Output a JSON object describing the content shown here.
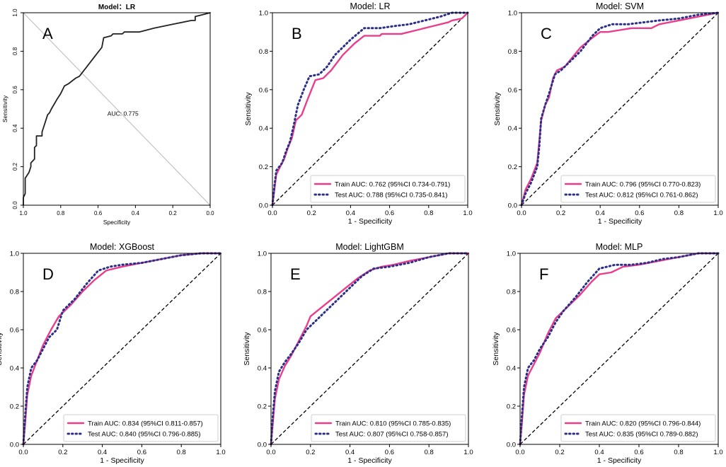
{
  "figure": "ROC curves for six models",
  "colors": {
    "train": "#e83e8c",
    "test": "#2b2f8a",
    "axis": "#000000",
    "diag": "#000000",
    "panelA": "#222222",
    "refline": "#bbbbbb"
  },
  "chart_data": [
    {
      "type": "line",
      "letter": "A",
      "title": "Model：LR",
      "xlabel": "Specificity",
      "ylabel": "Sensitivity",
      "xlim": [
        1.0,
        0.0
      ],
      "ylim": [
        0.0,
        1.0
      ],
      "x_ticks": [
        "1.0",
        "0.8",
        "0.6",
        "0.4",
        "0.2",
        "0.0"
      ],
      "y_ticks": [
        "0.0",
        "0.2",
        "0.4",
        "0.6",
        "0.8",
        "1.0"
      ],
      "annotation": "AUC: 0.775",
      "series": [
        {
          "name": "ROC",
          "x": [
            1.0,
            1.0,
            0.99,
            0.99,
            0.97,
            0.96,
            0.96,
            0.94,
            0.94,
            0.93,
            0.93,
            0.9,
            0.9,
            0.88,
            0.87,
            0.86,
            0.85,
            0.82,
            0.8,
            0.78,
            0.76,
            0.72,
            0.7,
            0.66,
            0.62,
            0.58,
            0.57,
            0.53,
            0.52,
            0.47,
            0.46,
            0.38,
            0.3,
            0.2,
            0.1,
            0.08,
            0.08,
            0.04,
            0.0
          ],
          "y": [
            0.0,
            0.04,
            0.06,
            0.14,
            0.17,
            0.2,
            0.22,
            0.24,
            0.3,
            0.31,
            0.36,
            0.36,
            0.38,
            0.44,
            0.47,
            0.48,
            0.5,
            0.55,
            0.58,
            0.62,
            0.63,
            0.66,
            0.67,
            0.72,
            0.77,
            0.82,
            0.87,
            0.88,
            0.89,
            0.89,
            0.9,
            0.9,
            0.92,
            0.94,
            0.96,
            0.96,
            0.98,
            0.99,
            1.0
          ]
        }
      ]
    },
    {
      "type": "line",
      "letter": "B",
      "title": "Model: LR",
      "xlabel": "1 - Specificity",
      "ylabel": "Sensitivity",
      "xlim": [
        0.0,
        1.0
      ],
      "ylim": [
        0.0,
        1.0
      ],
      "x_ticks": [
        "0.0",
        "0.2",
        "0.4",
        "0.6",
        "0.8",
        "1.0"
      ],
      "y_ticks": [
        "0.0",
        "0.2",
        "0.4",
        "0.6",
        "0.8",
        "1.0"
      ],
      "series": [
        {
          "name": "Train",
          "label": "Train AUC: 0.762 (95%CI 0.734-0.791)",
          "x": [
            0,
            0.01,
            0.02,
            0.04,
            0.06,
            0.08,
            0.1,
            0.12,
            0.15,
            0.18,
            0.22,
            0.26,
            0.3,
            0.36,
            0.42,
            0.47,
            0.55,
            0.56,
            0.66,
            0.74,
            0.82,
            0.9,
            0.92,
            0.97,
            1.0
          ],
          "y": [
            0,
            0.08,
            0.16,
            0.2,
            0.24,
            0.3,
            0.35,
            0.44,
            0.47,
            0.55,
            0.65,
            0.66,
            0.7,
            0.78,
            0.84,
            0.88,
            0.88,
            0.89,
            0.89,
            0.91,
            0.93,
            0.95,
            0.96,
            0.97,
            1.0
          ]
        },
        {
          "name": "Test",
          "label": "Test AUC: 0.788 (95%CI 0.735-0.841)",
          "x": [
            0,
            0.01,
            0.02,
            0.05,
            0.07,
            0.09,
            0.11,
            0.13,
            0.16,
            0.19,
            0.24,
            0.28,
            0.32,
            0.4,
            0.47,
            0.55,
            0.62,
            0.7,
            0.78,
            0.86,
            0.92,
            1.0
          ],
          "y": [
            0,
            0.1,
            0.18,
            0.22,
            0.28,
            0.33,
            0.42,
            0.52,
            0.6,
            0.67,
            0.68,
            0.72,
            0.78,
            0.86,
            0.92,
            0.92,
            0.93,
            0.94,
            0.96,
            0.98,
            1.0,
            1.0
          ]
        }
      ]
    },
    {
      "type": "line",
      "letter": "C",
      "title": "Model: SVM",
      "xlabel": "1 - Specificity",
      "ylabel": "Sensitivity",
      "xlim": [
        0.0,
        1.0
      ],
      "ylim": [
        0.0,
        1.0
      ],
      "x_ticks": [
        "0.0",
        "0.2",
        "0.4",
        "0.6",
        "0.8",
        "1.0"
      ],
      "y_ticks": [
        "0.0",
        "0.2",
        "0.4",
        "0.6",
        "0.8",
        "1.0"
      ],
      "series": [
        {
          "name": "Train",
          "label": "Train AUC: 0.796 (95%CI 0.770-0.823)",
          "x": [
            0,
            0.02,
            0.05,
            0.08,
            0.1,
            0.12,
            0.14,
            0.16,
            0.18,
            0.22,
            0.26,
            0.3,
            0.36,
            0.4,
            0.44,
            0.5,
            0.56,
            0.66,
            0.7,
            0.8,
            0.9,
            1.0
          ],
          "y": [
            0,
            0.08,
            0.14,
            0.22,
            0.44,
            0.52,
            0.56,
            0.66,
            0.7,
            0.72,
            0.77,
            0.82,
            0.87,
            0.9,
            0.9,
            0.91,
            0.92,
            0.92,
            0.94,
            0.96,
            0.98,
            1.0
          ]
        },
        {
          "name": "Test",
          "label": "Test AUC: 0.812 (95%CI 0.761-0.862)",
          "x": [
            0,
            0.02,
            0.05,
            0.08,
            0.09,
            0.1,
            0.12,
            0.14,
            0.17,
            0.2,
            0.24,
            0.3,
            0.36,
            0.4,
            0.46,
            0.54,
            0.62,
            0.7,
            0.8,
            0.9,
            1.0
          ],
          "y": [
            0,
            0.06,
            0.12,
            0.2,
            0.3,
            0.45,
            0.52,
            0.58,
            0.68,
            0.7,
            0.74,
            0.8,
            0.88,
            0.92,
            0.94,
            0.94,
            0.95,
            0.96,
            0.97,
            0.99,
            1.0
          ]
        }
      ]
    },
    {
      "type": "line",
      "letter": "D",
      "title": "Model: XGBoost",
      "xlabel": "1 - Specificity",
      "ylabel": "Sensitivity",
      "xlim": [
        0.0,
        1.0
      ],
      "ylim": [
        0.0,
        1.0
      ],
      "x_ticks": [
        "0.0",
        "0.2",
        "0.4",
        "0.6",
        "0.8",
        "1.0"
      ],
      "y_ticks": [
        "0.0",
        "0.2",
        "0.4",
        "0.6",
        "0.8",
        "1.0"
      ],
      "series": [
        {
          "name": "Train",
          "label": "Train AUC: 0.834 (95%CI 0.811-0.857)",
          "x": [
            0,
            0.01,
            0.02,
            0.04,
            0.07,
            0.1,
            0.14,
            0.18,
            0.24,
            0.3,
            0.36,
            0.42,
            0.5,
            0.6,
            0.7,
            0.8,
            0.9,
            1.0
          ],
          "y": [
            0,
            0.12,
            0.26,
            0.36,
            0.44,
            0.52,
            0.6,
            0.67,
            0.73,
            0.8,
            0.86,
            0.91,
            0.93,
            0.95,
            0.97,
            0.99,
            1.0,
            1.0
          ]
        },
        {
          "name": "Test",
          "label": "Test AUC: 0.840 (95%CI 0.796-0.885)",
          "x": [
            0,
            0.01,
            0.02,
            0.04,
            0.07,
            0.1,
            0.13,
            0.17,
            0.2,
            0.26,
            0.32,
            0.38,
            0.44,
            0.5,
            0.6,
            0.7,
            0.8,
            0.9,
            1.0
          ],
          "y": [
            0,
            0.16,
            0.3,
            0.4,
            0.44,
            0.5,
            0.56,
            0.6,
            0.7,
            0.76,
            0.84,
            0.91,
            0.93,
            0.94,
            0.95,
            0.97,
            0.99,
            1.0,
            1.0
          ]
        }
      ]
    },
    {
      "type": "line",
      "letter": "E",
      "title": "Model: LightGBM",
      "xlabel": "1 - Specificity",
      "ylabel": "Sensitivity",
      "xlim": [
        0.0,
        1.0
      ],
      "ylim": [
        0.0,
        1.0
      ],
      "x_ticks": [
        "0.0",
        "0.2",
        "0.4",
        "0.6",
        "0.8",
        "1.0"
      ],
      "y_ticks": [
        "0.0",
        "0.2",
        "0.4",
        "0.6",
        "0.8",
        "1.0"
      ],
      "series": [
        {
          "name": "Train",
          "label": "Train AUC: 0.810 (95%CI 0.785-0.835)",
          "x": [
            0,
            0.01,
            0.02,
            0.04,
            0.07,
            0.1,
            0.14,
            0.18,
            0.2,
            0.26,
            0.32,
            0.38,
            0.44,
            0.5,
            0.56,
            0.62,
            0.7,
            0.8,
            0.9,
            1.0
          ],
          "y": [
            0,
            0.12,
            0.24,
            0.34,
            0.41,
            0.46,
            0.54,
            0.62,
            0.67,
            0.72,
            0.77,
            0.82,
            0.87,
            0.91,
            0.93,
            0.94,
            0.96,
            0.98,
            1.0,
            1.0
          ]
        },
        {
          "name": "Test",
          "label": "Test AUC: 0.807 (95%CI 0.758-0.857)",
          "x": [
            0,
            0.01,
            0.02,
            0.04,
            0.07,
            0.1,
            0.14,
            0.18,
            0.22,
            0.28,
            0.34,
            0.4,
            0.46,
            0.52,
            0.6,
            0.7,
            0.8,
            0.9,
            1.0
          ],
          "y": [
            0,
            0.16,
            0.28,
            0.38,
            0.43,
            0.47,
            0.53,
            0.6,
            0.64,
            0.7,
            0.76,
            0.82,
            0.88,
            0.92,
            0.93,
            0.95,
            0.98,
            1.0,
            1.0
          ]
        }
      ]
    },
    {
      "type": "line",
      "letter": "F",
      "title": "Model: MLP",
      "xlabel": "1 - Specificity",
      "ylabel": "Sensitivity",
      "xlim": [
        0.0,
        1.0
      ],
      "ylim": [
        0.0,
        1.0
      ],
      "x_ticks": [
        "0.0",
        "0.2",
        "0.4",
        "0.6",
        "0.8",
        "1.0"
      ],
      "y_ticks": [
        "0.0",
        "0.2",
        "0.4",
        "0.6",
        "0.8",
        "1.0"
      ],
      "series": [
        {
          "name": "Train",
          "label": "Train AUC: 0.820 (95%CI 0.796-0.844)",
          "x": [
            0,
            0.01,
            0.02,
            0.04,
            0.07,
            0.1,
            0.14,
            0.18,
            0.24,
            0.3,
            0.36,
            0.4,
            0.46,
            0.52,
            0.6,
            0.7,
            0.8,
            0.9,
            1.0
          ],
          "y": [
            0,
            0.12,
            0.26,
            0.36,
            0.42,
            0.48,
            0.58,
            0.66,
            0.72,
            0.78,
            0.85,
            0.89,
            0.9,
            0.93,
            0.94,
            0.96,
            0.98,
            1.0,
            1.0
          ]
        },
        {
          "name": "Test",
          "label": "Test AUC: 0.835 (95%CI 0.789-0.882)",
          "x": [
            0,
            0.01,
            0.02,
            0.04,
            0.07,
            0.1,
            0.14,
            0.18,
            0.22,
            0.28,
            0.34,
            0.4,
            0.48,
            0.56,
            0.64,
            0.72,
            0.8,
            0.9,
            1.0
          ],
          "y": [
            0,
            0.16,
            0.3,
            0.4,
            0.44,
            0.5,
            0.56,
            0.64,
            0.7,
            0.77,
            0.85,
            0.92,
            0.94,
            0.94,
            0.95,
            0.97,
            0.98,
            1.0,
            1.0
          ]
        }
      ]
    }
  ]
}
